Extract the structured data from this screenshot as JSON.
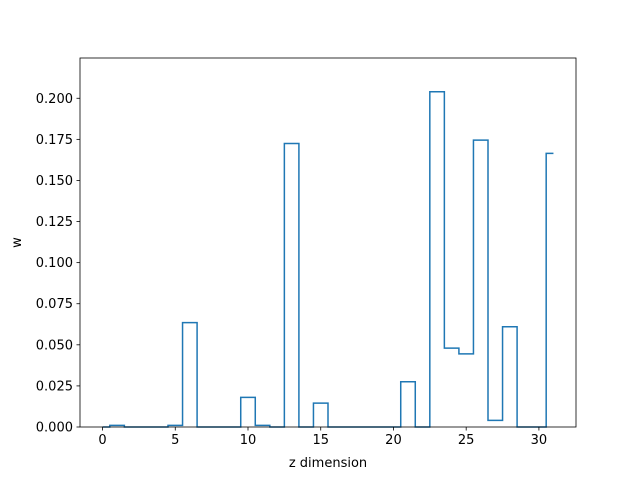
{
  "chart_data": {
    "type": "line",
    "drawstyle": "steps-mid",
    "title": "",
    "xlabel": "z dimension",
    "ylabel": "w",
    "xlim": [
      -1.55,
      32.55
    ],
    "ylim": [
      0.0,
      0.2245
    ],
    "xticks": [
      0,
      5,
      10,
      15,
      20,
      25,
      30
    ],
    "xtick_labels": [
      "0",
      "5",
      "10",
      "15",
      "20",
      "25",
      "30"
    ],
    "yticks": [
      0.0,
      0.025,
      0.05,
      0.075,
      0.1,
      0.125,
      0.15,
      0.175,
      0.2
    ],
    "ytick_labels": [
      "0.000",
      "0.025",
      "0.050",
      "0.075",
      "0.100",
      "0.125",
      "0.150",
      "0.175",
      "0.200"
    ],
    "grid": false,
    "legend": "none",
    "color": "#1f77b4",
    "series": [
      {
        "x": [
          0,
          1,
          2,
          3,
          4,
          5,
          6,
          7,
          8,
          9,
          10,
          11,
          12,
          13,
          14,
          15,
          16,
          17,
          18,
          19,
          20,
          21,
          22,
          23,
          24,
          25,
          26,
          27,
          28,
          29,
          30,
          31
        ],
        "values": [
          0.0,
          0.001,
          0.0,
          0.0,
          0.0,
          0.001,
          0.0635,
          0.0,
          0.0,
          0.0,
          0.018,
          0.001,
          0.0,
          0.1725,
          0.0,
          0.0145,
          0.0,
          0.0,
          0.0,
          0.0,
          0.0,
          0.0275,
          0.0,
          0.204,
          0.048,
          0.0445,
          0.1745,
          0.004,
          0.061,
          0.0,
          0.0,
          0.1665
        ]
      }
    ]
  }
}
